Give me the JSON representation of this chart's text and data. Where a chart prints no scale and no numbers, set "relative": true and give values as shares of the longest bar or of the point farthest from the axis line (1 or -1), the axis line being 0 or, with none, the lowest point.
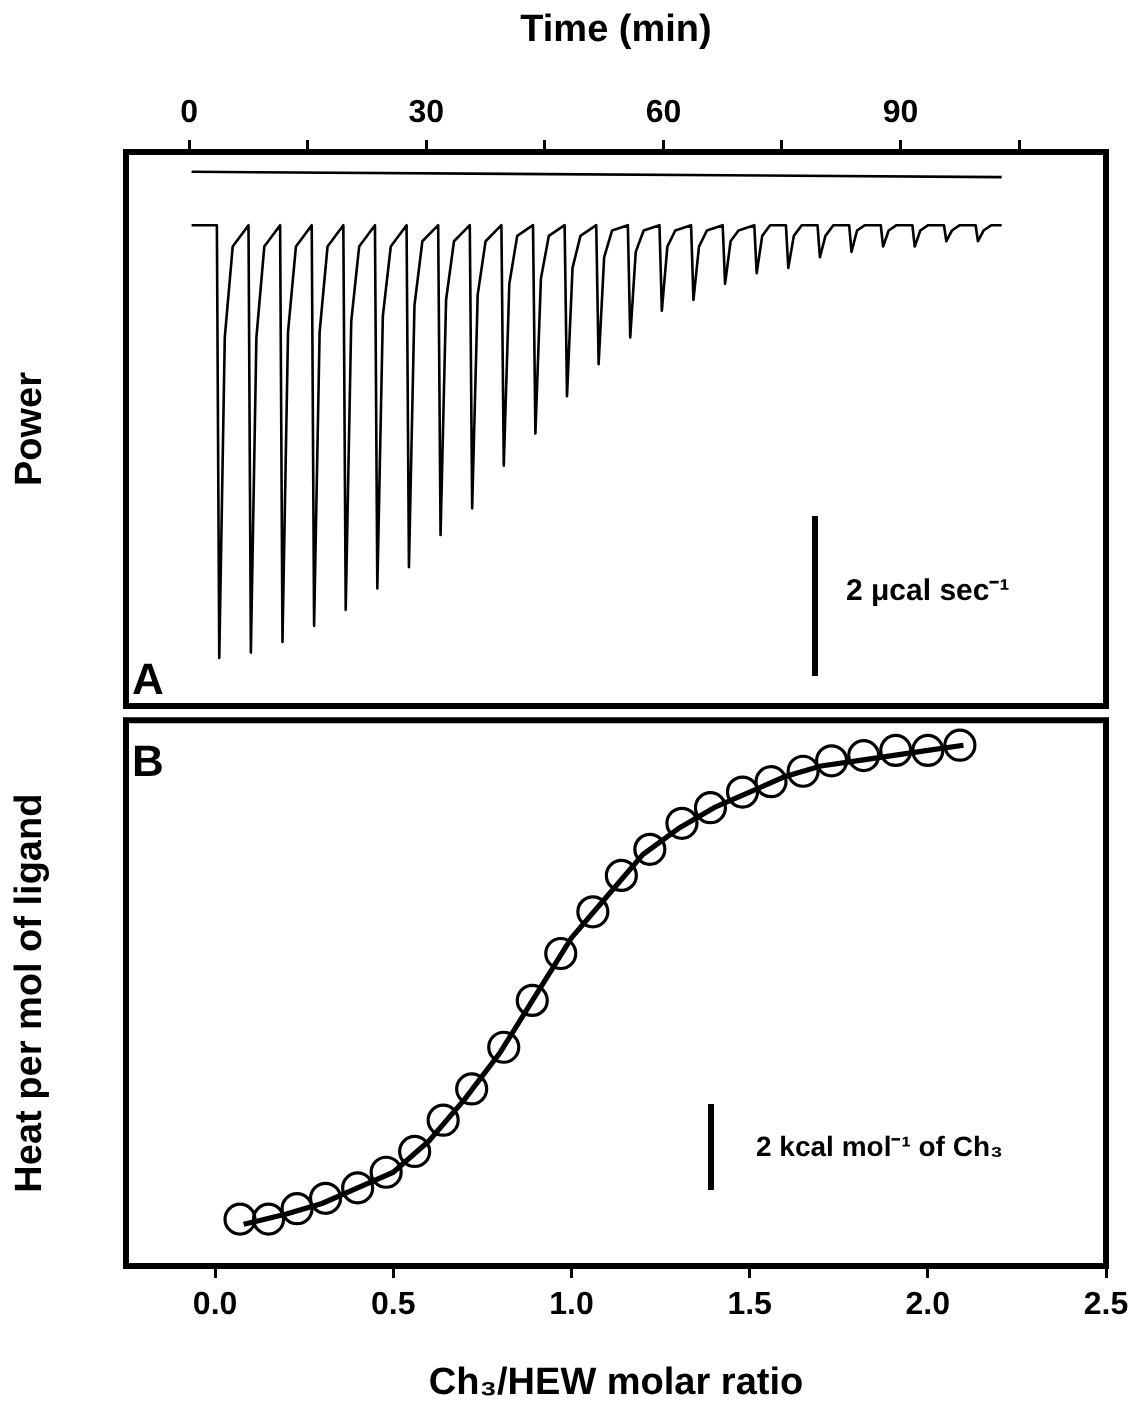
{
  "chart_data": [
    {
      "type": "line",
      "relative": true,
      "xlabel": "Time (min)",
      "ylabel": "Power",
      "xlim": [
        -8,
        116
      ],
      "xticks": [
        0,
        {
          "value": 15,
          "label": null
        },
        30,
        {
          "value": 45,
          "label": null
        },
        60,
        {
          "value": 75,
          "label": null
        },
        90,
        {
          "value": 105,
          "label": null
        }
      ],
      "marker": "none",
      "line_style": "solid",
      "annotations": [
        "A",
        "2 μcal sec⁻¹"
      ],
      "series": [
        {
          "color": "#000000",
          "x": [
            0.3,
            3.5,
            3.8,
            4.5,
            5.5,
            7.5,
            7.8,
            8.5,
            9.5,
            11.5,
            11.8,
            12.5,
            13.5,
            15.5,
            15.8,
            16.5,
            17.5,
            19.5,
            19.8,
            20.5,
            21.5,
            23.5,
            23.8,
            24.5,
            25.5,
            27.5,
            27.8,
            28.5,
            29.5,
            31.5,
            31.8,
            32.5,
            33.5,
            35.5,
            35.8,
            36.5,
            37.5,
            39.5,
            39.8,
            40.5,
            41.5,
            43.5,
            43.8,
            44.5,
            45.5,
            47.5,
            47.8,
            48.5,
            49.5,
            51.5,
            51.8,
            52.5,
            53.5,
            55.5,
            55.8,
            56.5,
            57.5,
            59.5,
            59.8,
            60.5,
            61.5,
            63.5,
            63.8,
            64.5,
            65.5,
            67.5,
            67.8,
            68.5,
            69.5,
            71.5,
            71.8,
            72.5,
            73.5,
            75.5,
            75.8,
            76.5,
            77.5,
            79.5,
            79.8,
            80.5,
            81.5,
            83.5,
            83.8,
            84.5,
            85.5,
            87.5,
            87.8,
            88.5,
            89.5,
            91.5,
            91.8,
            92.5,
            93.5,
            95.5,
            95.8,
            96.5,
            97.5,
            99.5,
            99.8,
            100.5,
            101.5,
            102.8
          ],
          "values": [
            0.9,
            0.9,
            0.09,
            0.69,
            0.86,
            0.9,
            0.1,
            0.69,
            0.86,
            0.9,
            0.12,
            0.7,
            0.86,
            0.9,
            0.15,
            0.7,
            0.86,
            0.9,
            0.18,
            0.72,
            0.86,
            0.9,
            0.22,
            0.73,
            0.86,
            0.9,
            0.26,
            0.75,
            0.87,
            0.9,
            0.32,
            0.76,
            0.87,
            0.9,
            0.37,
            0.77,
            0.87,
            0.9,
            0.45,
            0.79,
            0.88,
            0.9,
            0.51,
            0.8,
            0.88,
            0.9,
            0.58,
            0.82,
            0.88,
            0.9,
            0.64,
            0.84,
            0.89,
            0.9,
            0.69,
            0.85,
            0.89,
            0.9,
            0.74,
            0.86,
            0.89,
            0.9,
            0.76,
            0.86,
            0.89,
            0.9,
            0.79,
            0.87,
            0.89,
            0.9,
            0.81,
            0.88,
            0.9,
            0.9,
            0.82,
            0.88,
            0.9,
            0.9,
            0.84,
            0.88,
            0.9,
            0.9,
            0.85,
            0.89,
            0.9,
            0.9,
            0.86,
            0.89,
            0.9,
            0.9,
            0.86,
            0.89,
            0.9,
            0.9,
            0.87,
            0.89,
            0.9,
            0.9,
            0.87,
            0.89,
            0.9,
            0.9
          ]
        },
        {
          "color": "#000000",
          "x": [
            0.3,
            102.8
          ],
          "values": [
            1,
            0.99
          ]
        }
      ]
    },
    {
      "type": "scatter",
      "relative": true,
      "xlabel": "Ch₃/HEW molar ratio",
      "ylabel": "Heat per mol of ligand",
      "xlim": [
        -0.25,
        2.5
      ],
      "xticks": [
        {
          "value": 0,
          "label": "0.0"
        },
        0.5,
        {
          "value": 1,
          "label": "1.0"
        },
        1.5,
        {
          "value": 2,
          "label": "2.0"
        },
        2.5
      ],
      "annotations": [
        "B",
        "2 kcal mol⁻¹ of Ch₃"
      ],
      "series": [
        {
          "marker": "circle",
          "color": "#000000",
          "x": [
            0.07,
            0.15,
            0.23,
            0.31,
            0.4,
            0.48,
            0.56,
            0.64,
            0.72,
            0.81,
            0.89,
            0.97,
            1.06,
            1.14,
            1.22,
            1.31,
            1.39,
            1.48,
            1.56,
            1.65,
            1.73,
            1.82,
            1.91,
            2.0,
            2.09
          ],
          "values": [
            0.09,
            0.09,
            0.11,
            0.13,
            0.15,
            0.18,
            0.22,
            0.28,
            0.34,
            0.42,
            0.51,
            0.6,
            0.68,
            0.75,
            0.8,
            0.85,
            0.88,
            0.91,
            0.93,
            0.95,
            0.97,
            0.98,
            0.99,
            0.99,
            1
          ]
        },
        {
          "type": "line",
          "marker": "none",
          "line_style": "solid",
          "color": "#000000",
          "x": [
            0.08,
            0.2,
            0.3,
            0.4,
            0.5,
            0.6,
            0.7,
            0.8,
            0.9,
            1.0,
            1.1,
            1.2,
            1.3,
            1.4,
            1.5,
            1.6,
            1.7,
            1.8,
            1.9,
            2.0,
            2.1
          ],
          "values": [
            0.08,
            0.1,
            0.12,
            0.15,
            0.18,
            0.24,
            0.32,
            0.41,
            0.52,
            0.63,
            0.71,
            0.79,
            0.84,
            0.88,
            0.91,
            0.94,
            0.96,
            0.97,
            0.98,
            0.99,
            1
          ]
        }
      ]
    }
  ]
}
